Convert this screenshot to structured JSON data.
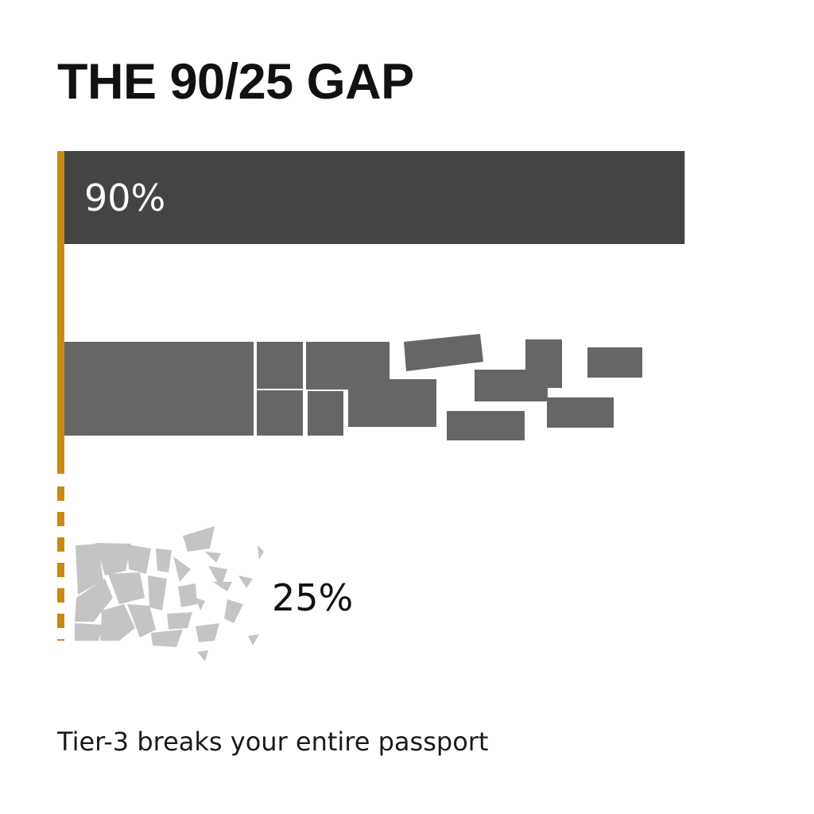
{
  "title": "THE 90/25 GAP",
  "caption": "Tier-3 breaks your entire passport",
  "colors": {
    "axis": "#c98a12",
    "bar_solid": "#444444",
    "bar_cracked": "#666666",
    "bar_shattered": "#c4c4c4",
    "label_light": "#ffffff",
    "label_dark": "#111111"
  },
  "chart_data": {
    "type": "bar",
    "orientation": "horizontal",
    "title": "THE 90/25 GAP",
    "xlabel": "",
    "ylabel": "",
    "xlim": [
      0,
      100
    ],
    "grid": false,
    "legend": "none",
    "bars": [
      {
        "value": 90,
        "label": "90%",
        "style": "solid"
      },
      {
        "value": null,
        "label": "",
        "style": "cracked"
      },
      {
        "value": 25,
        "label": "25%",
        "style": "shattered"
      }
    ],
    "caption": "Tier-3 breaks your entire passport"
  }
}
